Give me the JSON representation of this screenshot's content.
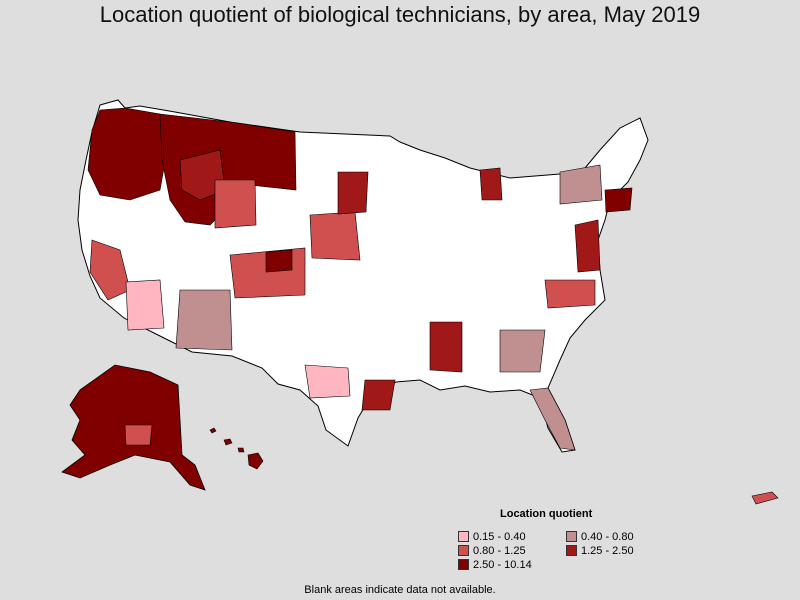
{
  "title": "Location quotient of biological technicians, by area, May 2019",
  "legend": {
    "title": "Location quotient",
    "items": [
      {
        "label": "0.15 - 0.40",
        "color": "#ffb6c1"
      },
      {
        "label": "0.40 - 0.80",
        "color": "#c09090"
      },
      {
        "label": "0.80 - 1.25",
        "color": "#d05050"
      },
      {
        "label": "1.25 - 2.50",
        "color": "#a01818"
      },
      {
        "label": "2.50 - 10.14",
        "color": "#800000"
      }
    ]
  },
  "footnote": "Blank areas indicate data not available.",
  "colors": {
    "background": "#dedede",
    "blank": "#ffffff",
    "border": "#000000"
  }
}
